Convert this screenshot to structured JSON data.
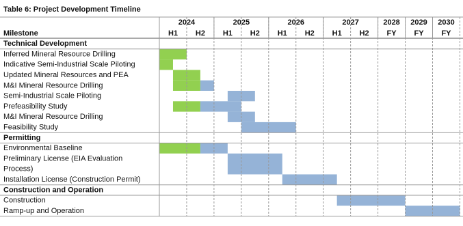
{
  "title": "Table 6: Project Development Timeline",
  "header": {
    "years": [
      "2024",
      "2025",
      "2026",
      "2027",
      "2028",
      "2029",
      "2030"
    ],
    "milestone": "Milestone",
    "periods": [
      "H1",
      "H2",
      "H1",
      "H2",
      "H1",
      "H2",
      "H1",
      "H2",
      "FY",
      "FY",
      "FY"
    ]
  },
  "sections": [
    {
      "title": "Technical Development",
      "rows": [
        [
          "Inferred Mineral Resource Drilling"
        ],
        [
          "Indicative Semi-Industrial Scale Piloting"
        ],
        [
          "Updated Mineral Resources and PEA"
        ],
        [
          "M&I Mineral Resource Drilling"
        ],
        [
          "Semi-Industrial Scale Piloting"
        ],
        [
          "Prefeasibility Study"
        ],
        [
          "M&I Mineral Resource Drilling"
        ],
        [
          "Feasibility Study"
        ]
      ]
    },
    {
      "title": "Permitting",
      "rows": [
        [
          "Environmental Baseline"
        ],
        [
          "Preliminary License (EIA Evaluation",
          "Process)"
        ],
        [
          "Installation License (Construction Permit)"
        ]
      ]
    },
    {
      "title": "Construction and Operation",
      "rows": [
        [
          "Construction"
        ],
        [
          "Ramp-up and Operation"
        ]
      ]
    }
  ]
}
